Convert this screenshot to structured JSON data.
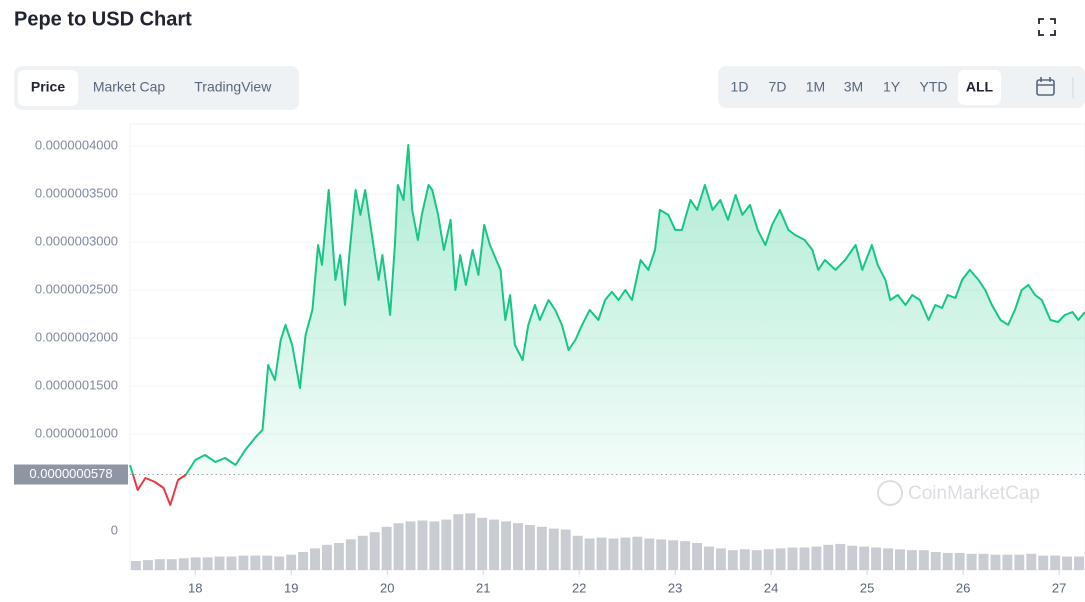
{
  "header": {
    "title": "Pepe to USD Chart"
  },
  "tabs": [
    "Price",
    "Market Cap",
    "TradingView"
  ],
  "active_tab": 0,
  "ranges": [
    "1D",
    "7D",
    "1M",
    "3M",
    "1Y",
    "YTD",
    "ALL"
  ],
  "active_range": 6,
  "watermark": "CoinMarketCap",
  "chart_data": {
    "type": "line",
    "x": [
      17.32,
      17.4,
      17.48,
      17.58,
      17.67,
      17.74,
      17.82,
      17.9,
      18.0,
      18.1,
      18.21,
      18.31,
      18.42,
      18.52,
      18.63,
      18.7,
      18.76,
      18.83,
      18.89,
      18.94,
      19.01,
      19.09,
      19.15,
      19.22,
      19.28,
      19.32,
      19.39,
      19.46,
      19.51,
      19.56,
      19.61,
      19.67,
      19.72,
      19.77,
      19.84,
      19.91,
      19.95,
      20.03,
      20.08,
      20.11,
      20.17,
      20.22,
      20.26,
      20.32,
      20.36,
      20.43,
      20.47,
      20.53,
      20.59,
      20.66,
      20.71,
      20.76,
      20.82,
      20.89,
      20.95,
      21.01,
      21.07,
      21.18,
      21.23,
      21.28,
      21.33,
      21.41,
      21.47,
      21.54,
      21.59,
      21.68,
      21.75,
      21.82,
      21.89,
      21.96,
      22.03,
      22.11,
      22.2,
      22.27,
      22.34,
      22.41,
      22.48,
      22.55,
      22.64,
      22.72,
      22.79,
      22.84,
      22.93,
      23.0,
      23.07,
      23.16,
      23.23,
      23.31,
      23.39,
      23.47,
      23.55,
      23.63,
      23.7,
      23.78,
      23.86,
      23.94,
      24.01,
      24.09,
      24.18,
      24.25,
      24.35,
      24.43,
      24.49,
      24.56,
      24.67,
      24.77,
      24.88,
      24.95,
      25.05,
      25.11,
      25.19,
      25.24,
      25.32,
      25.4,
      25.47,
      25.55,
      25.64,
      25.71,
      25.78,
      25.84,
      25.92,
      25.99,
      26.07,
      26.16,
      26.23,
      26.3,
      26.39,
      26.47,
      26.54,
      26.61,
      26.68,
      26.75,
      26.82,
      26.91,
      26.99,
      27.06,
      27.14,
      27.2,
      27.27
    ],
    "series": [
      {
        "color": "#16c784",
        "below_color": "#ea3943",
        "values": [
          6.77e-08,
          4.17e-08,
          5.42e-08,
          5e-08,
          4.37e-08,
          2.6e-08,
          5.21e-08,
          5.73e-08,
          7.29e-08,
          7.81e-08,
          7.08e-08,
          7.5e-08,
          6.77e-08,
          8.33e-08,
          9.69e-08,
          1.042e-07,
          1.719e-07,
          1.563e-07,
          1.979e-07,
          2.136e-07,
          1.927e-07,
          1.479e-07,
          2.032e-07,
          2.292e-07,
          2.969e-07,
          2.761e-07,
          3.542e-07,
          2.605e-07,
          2.865e-07,
          2.344e-07,
          2.917e-07,
          3.542e-07,
          3.282e-07,
          3.542e-07,
          3.073e-07,
          2.605e-07,
          2.865e-07,
          2.24e-07,
          2.969e-07,
          3.594e-07,
          3.438e-07,
          4.011e-07,
          3.334e-07,
          3.021e-07,
          3.282e-07,
          3.594e-07,
          3.542e-07,
          3.282e-07,
          2.917e-07,
          3.23e-07,
          2.5e-07,
          2.865e-07,
          2.553e-07,
          2.917e-07,
          2.657e-07,
          3.178e-07,
          2.969e-07,
          2.709e-07,
          2.188e-07,
          2.448e-07,
          1.927e-07,
          1.771e-07,
          2.136e-07,
          2.344e-07,
          2.188e-07,
          2.396e-07,
          2.292e-07,
          2.136e-07,
          1.875e-07,
          1.979e-07,
          2.136e-07,
          2.292e-07,
          2.188e-07,
          2.396e-07,
          2.48e-07,
          2.396e-07,
          2.5e-07,
          2.396e-07,
          2.813e-07,
          2.709e-07,
          2.917e-07,
          3.334e-07,
          3.282e-07,
          3.126e-07,
          3.126e-07,
          3.438e-07,
          3.334e-07,
          3.594e-07,
          3.334e-07,
          3.438e-07,
          3.23e-07,
          3.49e-07,
          3.282e-07,
          3.386e-07,
          3.126e-07,
          2.969e-07,
          3.178e-07,
          3.334e-07,
          3.126e-07,
          3.073e-07,
          3.021e-07,
          2.917e-07,
          2.709e-07,
          2.813e-07,
          2.709e-07,
          2.813e-07,
          2.969e-07,
          2.709e-07,
          2.969e-07,
          2.761e-07,
          2.605e-07,
          2.396e-07,
          2.448e-07,
          2.344e-07,
          2.448e-07,
          2.396e-07,
          2.188e-07,
          2.344e-07,
          2.313e-07,
          2.448e-07,
          2.417e-07,
          2.605e-07,
          2.709e-07,
          2.605e-07,
          2.5e-07,
          2.344e-07,
          2.188e-07,
          2.136e-07,
          2.292e-07,
          2.5e-07,
          2.553e-07,
          2.448e-07,
          2.396e-07,
          2.188e-07,
          2.167e-07,
          2.24e-07,
          2.271e-07,
          2.188e-07,
          2.271e-07
        ]
      }
    ],
    "baseline": {
      "value": 5.78e-08,
      "label": "0.0000000578"
    },
    "xlim": [
      17.32,
      27.27
    ],
    "xticks": [
      18,
      19,
      20,
      21,
      22,
      23,
      24,
      25,
      26,
      27
    ],
    "ylim": [
      2.5e-08,
      4.2e-07
    ],
    "yticks": [
      {
        "value": 1e-07,
        "label": "0.0000001000"
      },
      {
        "value": 1.5e-07,
        "label": "0.0000001500"
      },
      {
        "value": 2e-07,
        "label": "0.0000002000"
      },
      {
        "value": 2.5e-07,
        "label": "0.0000002500"
      },
      {
        "value": 3e-07,
        "label": "0.0000003000"
      },
      {
        "value": 3.5e-07,
        "label": "0.0000003500"
      },
      {
        "value": 4e-07,
        "label": "0.0000004000"
      }
    ],
    "grid": true,
    "volume": {
      "color": "#c9ccd3",
      "values": [
        10,
        11,
        12,
        12,
        13,
        14,
        14,
        15,
        15,
        16,
        16,
        16,
        15,
        17,
        20,
        24,
        28,
        30,
        34,
        38,
        42,
        48,
        52,
        54,
        55,
        54,
        56,
        62,
        63,
        58,
        56,
        54,
        52,
        50,
        48,
        46,
        45,
        38,
        35,
        36,
        35,
        36,
        37,
        35,
        34,
        33,
        32,
        30,
        26,
        24,
        22,
        23,
        22,
        23,
        24,
        25,
        25,
        26,
        28,
        29,
        27,
        26,
        25,
        24,
        23,
        22,
        22,
        20,
        19,
        19,
        18,
        18,
        17,
        17,
        17,
        18,
        16,
        16,
        15,
        15
      ]
    },
    "y2lim": [
      0,
      70
    ],
    "y2ticks": [
      0
    ]
  }
}
